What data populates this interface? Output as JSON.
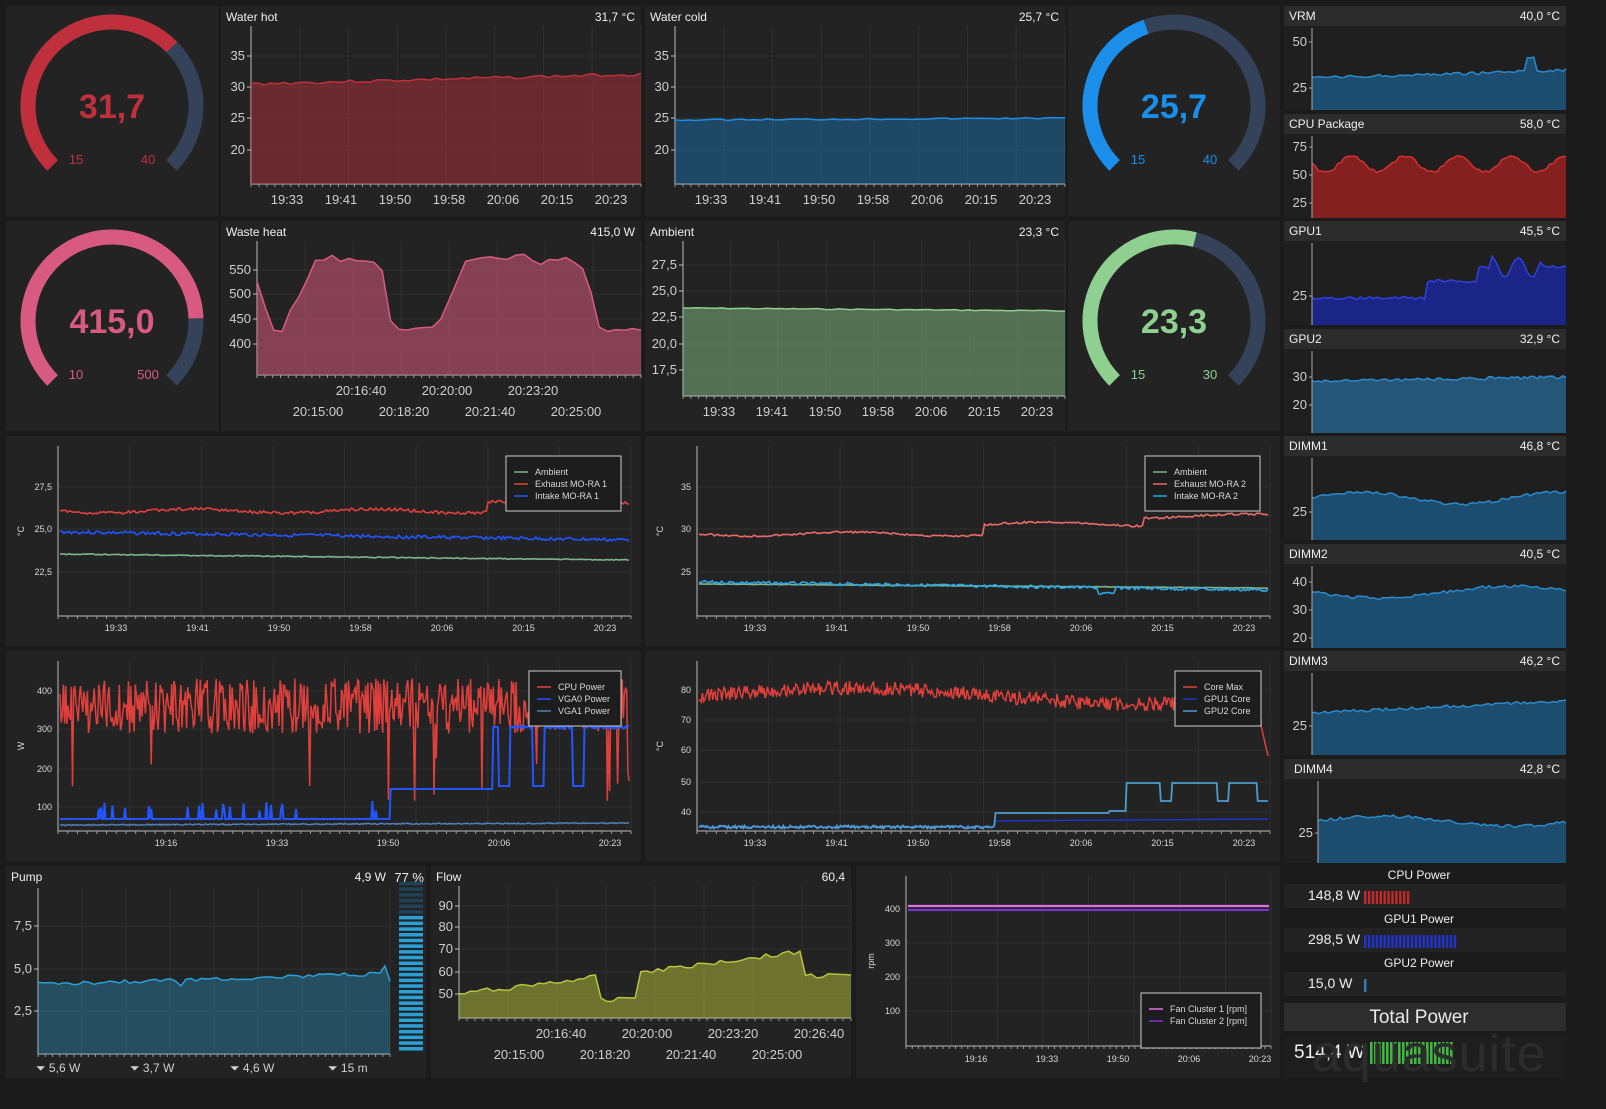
{
  "water_hot": {
    "title": "Water hot",
    "value_text": "31,7 °C",
    "gauge_value": "31,7",
    "gauge_min": "15",
    "gauge_max": "40",
    "value": 31.7,
    "min": 15,
    "max": 40,
    "color": "#c0303c",
    "yticks": [
      "35",
      "30",
      "25",
      "20"
    ],
    "xticks": [
      "19:33",
      "19:41",
      "19:50",
      "19:58",
      "20:06",
      "20:15",
      "20:23"
    ]
  },
  "water_cold": {
    "title": "Water cold",
    "value_text": "25,7 °C",
    "gauge_value": "25,7",
    "gauge_min": "15",
    "gauge_max": "40",
    "value": 25.7,
    "min": 15,
    "max": 40,
    "color": "#1a8ee8",
    "yticks": [
      "35",
      "30",
      "25",
      "20"
    ],
    "xticks": [
      "19:33",
      "19:41",
      "19:50",
      "19:58",
      "20:06",
      "20:15",
      "20:23"
    ]
  },
  "waste_heat": {
    "title": "Waste heat",
    "value_text": "415,0 W",
    "gauge_value": "415,0",
    "gauge_min": "10",
    "gauge_max": "500",
    "value": 415,
    "min": 10,
    "max": 500,
    "color": "#d85a82",
    "yticks": [
      "550",
      "500",
      "450",
      "400"
    ],
    "xticks_top": [
      "20:16:40",
      "20:20:00",
      "20:23:20"
    ],
    "xticks_bottom": [
      "20:15:00",
      "20:18:20",
      "20:21:40",
      "20:25:00"
    ]
  },
  "ambient": {
    "title": "Ambient",
    "value_text": "23,3 °C",
    "gauge_value": "23,3",
    "gauge_min": "15",
    "gauge_max": "30",
    "value": 23.3,
    "min": 15,
    "max": 30,
    "color": "#8fcf90",
    "yticks": [
      "27,5",
      "25,0",
      "22,5",
      "20,0",
      "17,5"
    ],
    "xticks": [
      "19:33",
      "19:41",
      "19:50",
      "19:58",
      "20:06",
      "20:15",
      "20:23"
    ]
  },
  "temps1": {
    "ylabel": "°C",
    "yticks": [
      "27,5",
      "25,0",
      "22,5"
    ],
    "xticks": [
      "19:33",
      "19:41",
      "19:50",
      "19:58",
      "20:06",
      "20:15",
      "20:23"
    ],
    "legend": [
      {
        "name": "Ambient",
        "color": "#7fb58a"
      },
      {
        "name": "Exhaust MO-RA 1",
        "color": "#e0403c"
      },
      {
        "name": "Intake MO-RA 1",
        "color": "#2255ff"
      }
    ]
  },
  "temps2": {
    "ylabel": "°C",
    "yticks": [
      "35",
      "30",
      "25"
    ],
    "xticks": [
      "19:33",
      "19:41",
      "19:50",
      "19:58",
      "20:06",
      "20:15",
      "20:23"
    ],
    "legend": [
      {
        "name": "Ambient",
        "color": "#7fb58a"
      },
      {
        "name": "Exhaust MO-RA 2",
        "color": "#e86a6a"
      },
      {
        "name": "Intake MO-RA 2",
        "color": "#2aa8e8"
      }
    ]
  },
  "power": {
    "ylabel": "W",
    "yticks": [
      "400",
      "300",
      "200",
      "100"
    ],
    "xticks": [
      "19:16",
      "19:33",
      "19:50",
      "20:06",
      "20:23"
    ],
    "legend": [
      {
        "name": "CPU Power",
        "color": "#e0403c"
      },
      {
        "name": "VGA0 Power",
        "color": "#2255ff"
      },
      {
        "name": "VGA1 Power",
        "color": "#4e7fb8"
      }
    ]
  },
  "gpu_temps": {
    "ylabel": "°C",
    "yticks": [
      "80",
      "70",
      "60",
      "50",
      "40"
    ],
    "xticks": [
      "19:33",
      "19:41",
      "19:50",
      "19:58",
      "20:06",
      "20:15",
      "20:23"
    ],
    "legend": [
      {
        "name": "Core Max",
        "color": "#e0403c"
      },
      {
        "name": "GPU1 Core",
        "color": "#2233cc"
      },
      {
        "name": "GPU2 Core",
        "color": "#4e9bd0"
      }
    ]
  },
  "pump": {
    "title": "Pump",
    "value_text": "4,9 W",
    "percent": "77 %",
    "level": 0.77,
    "yticks": [
      "7,5",
      "5,0",
      "2,5"
    ],
    "stats": [
      "5,6 W",
      "3,7 W",
      "4,6 W",
      "15 m"
    ]
  },
  "flow": {
    "title": "Flow",
    "value_text": "60,4",
    "yticks": [
      "90",
      "80",
      "70",
      "60",
      "50"
    ],
    "xticks_top": [
      "20:16:40",
      "20:20:00",
      "20:23:20",
      "20:26:40"
    ],
    "xticks_bottom": [
      "20:15:00",
      "20:18:20",
      "20:21:40",
      "20:25:00"
    ]
  },
  "fans": {
    "ylabel": "rpm",
    "yticks": [
      "400",
      "300",
      "200",
      "100"
    ],
    "xticks": [
      "19:16",
      "19:33",
      "19:50",
      "20:06",
      "20:23"
    ],
    "legend": [
      {
        "name": "Fan Cluster 1 [rpm]",
        "color": "#e070e0"
      },
      {
        "name": "Fan Cluster 2 [rpm]",
        "color": "#8030d0"
      }
    ]
  },
  "sensors": [
    {
      "title": "VRM",
      "value_text": "40,0 °C",
      "yticks": [
        "50",
        "25"
      ],
      "color": "#1c5e8a"
    },
    {
      "title": "CPU Package",
      "value_text": "58,0 °C",
      "yticks": [
        "75",
        "50",
        "25"
      ],
      "color": "#a82222"
    },
    {
      "title": "GPU1",
      "value_text": "45,5 °C",
      "yticks": [
        "25"
      ],
      "color": "#1a28a8"
    },
    {
      "title": "GPU2",
      "value_text": "32,9 °C",
      "yticks": [
        "30",
        "20"
      ],
      "color": "#2a6a96"
    },
    {
      "title": "DIMM1",
      "value_text": "46,8 °C",
      "yticks": [
        "25"
      ],
      "color": "#1c5e8a"
    },
    {
      "title": "DIMM2",
      "value_text": "40,5 °C",
      "yticks": [
        "40",
        "30",
        "20"
      ],
      "color": "#1c5e8a"
    },
    {
      "title": "DIMM3",
      "value_text": "46,2 °C",
      "yticks": [
        "25"
      ],
      "color": "#1c5e8a"
    },
    {
      "title": "DIMM4",
      "value_text": "42,8 °C",
      "yticks": [
        "25"
      ],
      "color": "#1c5e8a"
    }
  ],
  "power_summary": {
    "items": [
      {
        "label": "CPU Power",
        "value": "148,8 W",
        "level": 0.3,
        "color": "#c02a2a"
      },
      {
        "label": "GPU1 Power",
        "value": "298,5 W",
        "level": 0.6,
        "color": "#2233cc"
      },
      {
        "label": "GPU2 Power",
        "value": "15,0 W",
        "level": 0.03,
        "color": "#3a7ab8"
      }
    ],
    "total_label": "Total Power",
    "total_value": "514,4 W",
    "total_level": 0.52,
    "total_color": "#3fb83f"
  },
  "watermark": "aquasuite"
}
